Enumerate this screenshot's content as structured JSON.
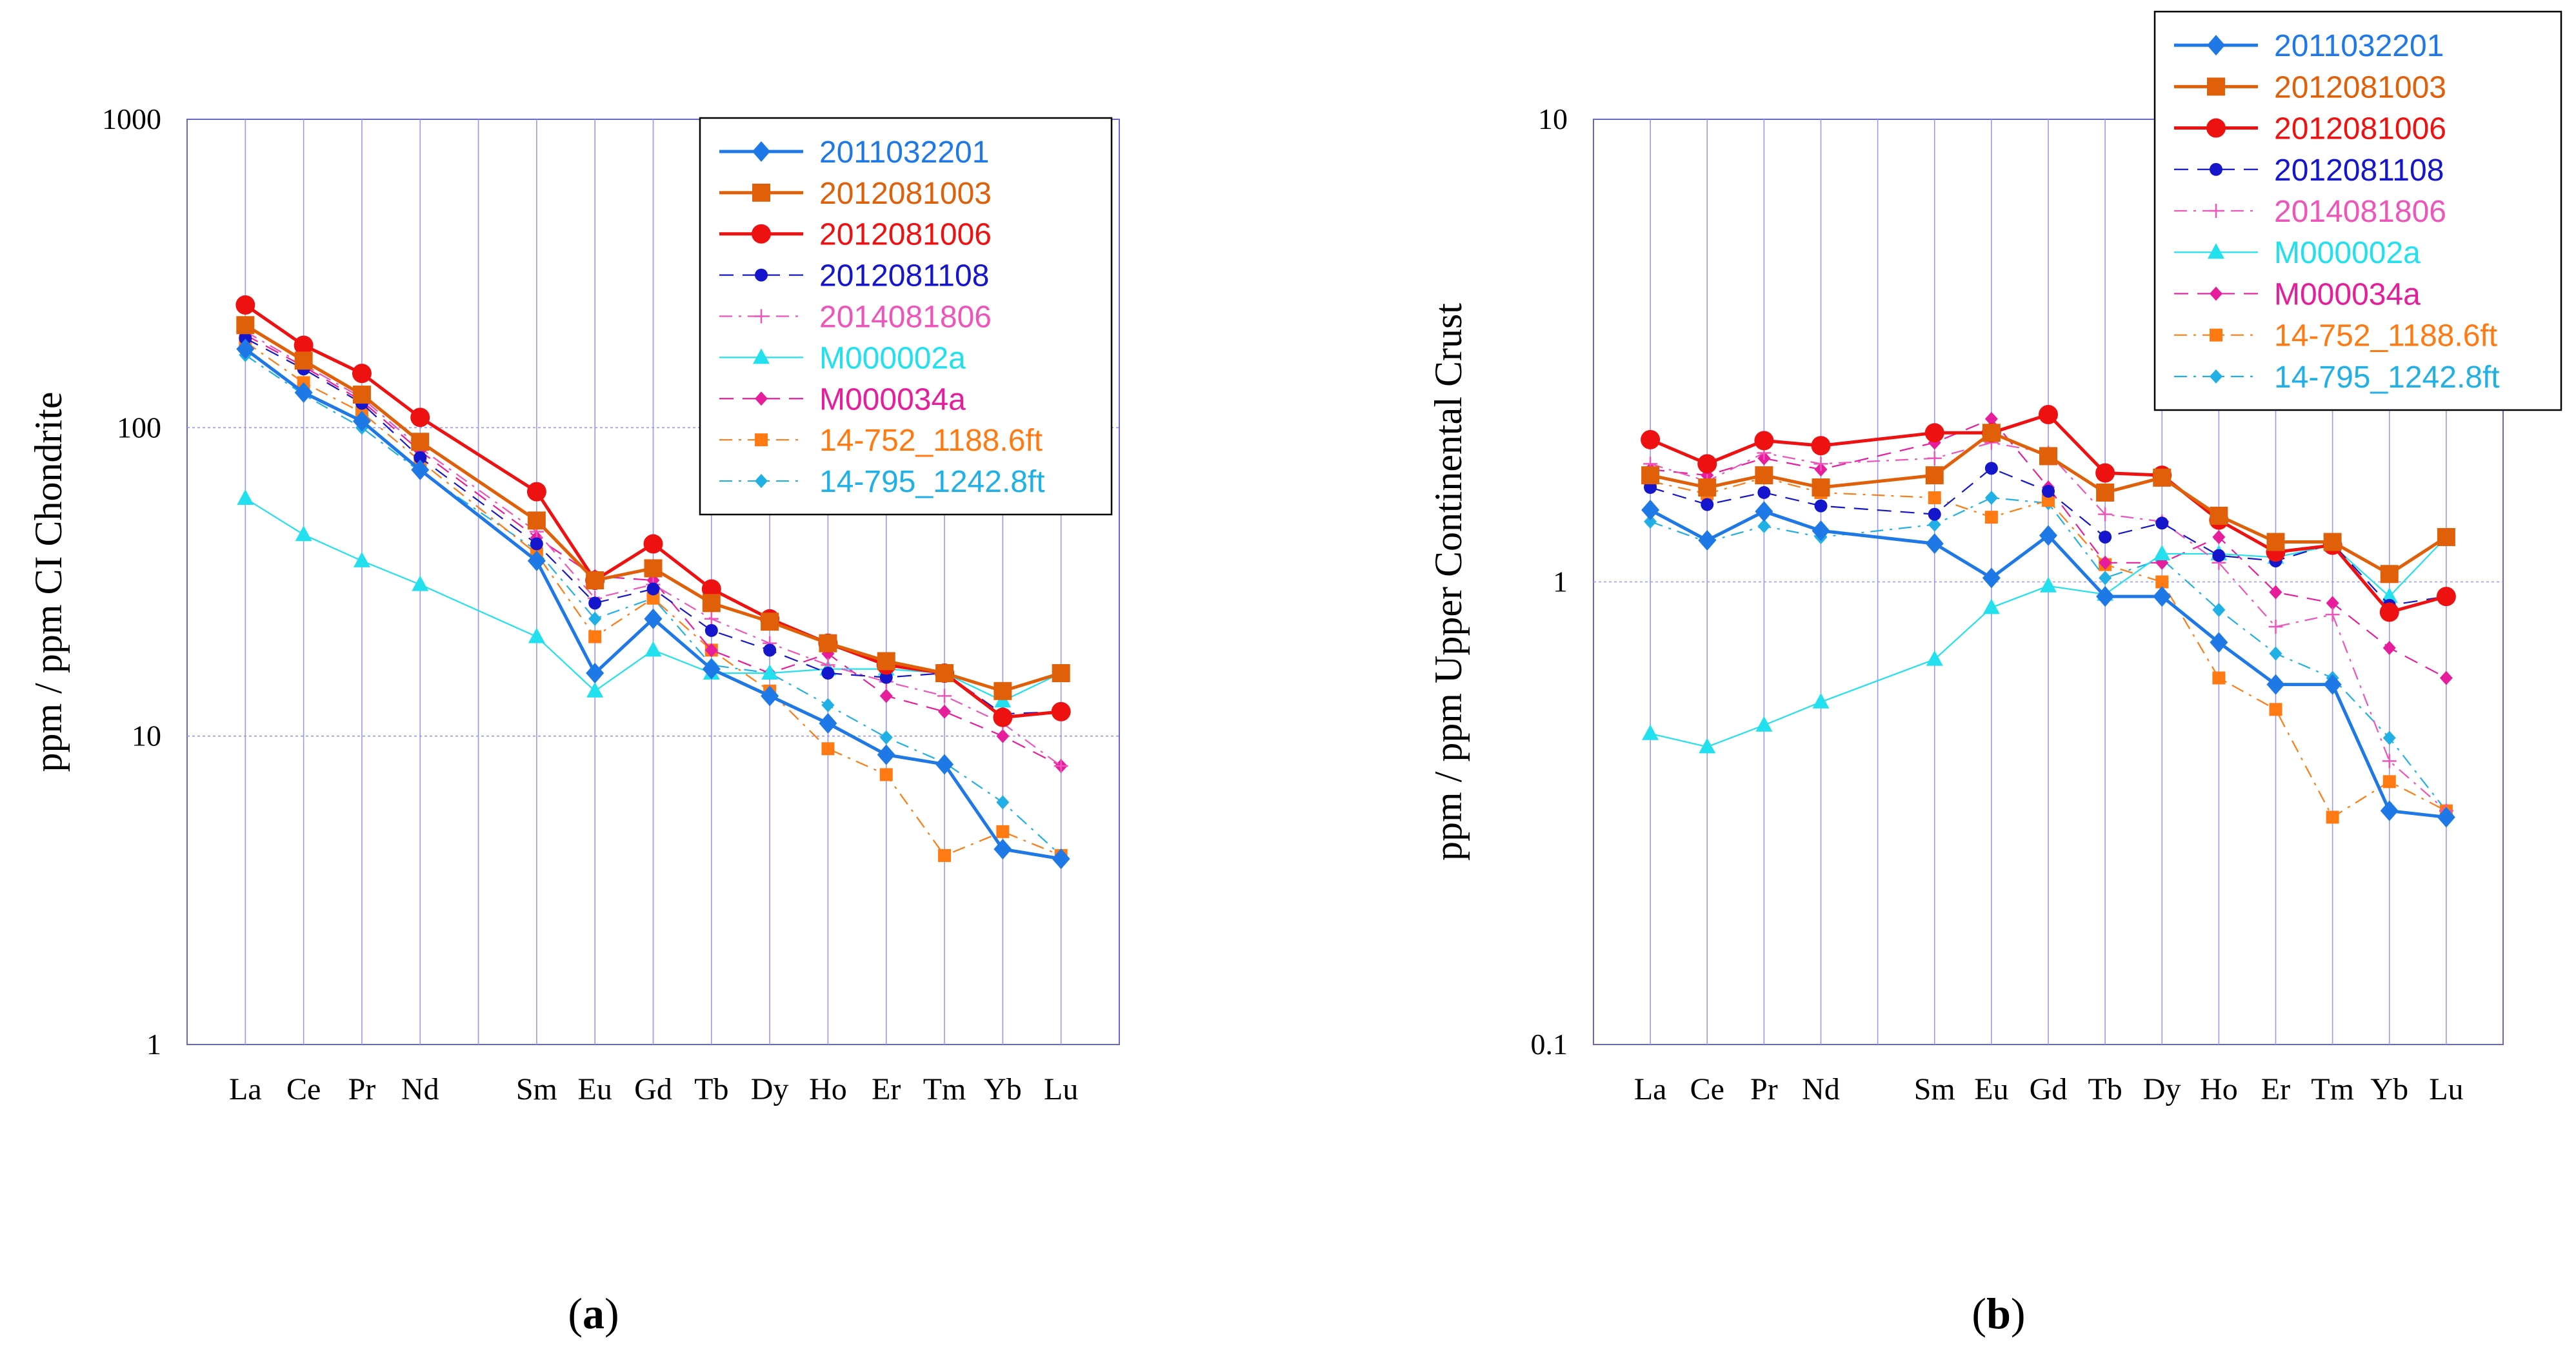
{
  "colors": {
    "grid": "#9999ee",
    "axis": "#6666cc",
    "text": "#000000",
    "legend_border": "#000000"
  },
  "series_styles": [
    {
      "name": "2011032201",
      "color": "#1e78e6",
      "marker": "diamond",
      "dash": "solid",
      "width": "thick"
    },
    {
      "name": "2012081003",
      "color": "#e0600a",
      "marker": "square",
      "dash": "solid",
      "width": "thick"
    },
    {
      "name": "2012081006",
      "color": "#ee1111",
      "marker": "circle",
      "dash": "solid",
      "width": "thick"
    },
    {
      "name": "2012081108",
      "color": "#1515cc",
      "marker": "circle-small",
      "dash": "dashed",
      "width": "thin"
    },
    {
      "name": "2014081806",
      "color": "#ee55bb",
      "marker": "plus",
      "dash": "dashdot",
      "width": "thin"
    },
    {
      "name": "M000002a",
      "color": "#22e0ee",
      "marker": "triangle",
      "dash": "solid",
      "width": "thin"
    },
    {
      "name": "M000034a",
      "color": "#e61e9c",
      "marker": "diamond-small",
      "dash": "dashed",
      "width": "thin"
    },
    {
      "name": "14-752_1188.6ft",
      "color": "#ff7a12",
      "marker": "square-small",
      "dash": "dashdot",
      "width": "thin"
    },
    {
      "name": "14-795_1242.8ft",
      "color": "#20b0e6",
      "marker": "diamond-small",
      "dash": "dashdot",
      "width": "thin"
    }
  ],
  "chart_data": [
    {
      "type": "line",
      "panel_label": "(a)",
      "panel_letter": "a",
      "title": "",
      "xlabel": "",
      "ylabel": "ppm / ppm CI Chondrite",
      "yscale": "log",
      "ylim": [
        1,
        1000
      ],
      "ytick_labels": [
        "1",
        "10",
        "100",
        "1000"
      ],
      "grid": true,
      "legend_position": "top-right",
      "categories": [
        "La",
        "Ce",
        "Pr",
        "Nd",
        "Sm",
        "Eu",
        "Gd",
        "Tb",
        "Dy",
        "Ho",
        "Er",
        "Tm",
        "Yb",
        "Lu"
      ],
      "category_slots": [
        1,
        2,
        3,
        4,
        6,
        7,
        8,
        9,
        10,
        11,
        12,
        13,
        14,
        15
      ],
      "slot_range": [
        0,
        16
      ],
      "series": [
        {
          "name": "2011032201",
          "values": [
            180,
            130,
            105,
            73,
            37,
            16,
            24,
            16.5,
            13.5,
            11,
            8.7,
            8.1,
            4.3,
            4.0
          ]
        },
        {
          "name": "2012081003",
          "values": [
            215,
            165,
            128,
            90,
            50,
            32,
            35,
            27,
            23.5,
            20,
            17.5,
            16,
            14,
            16
          ]
        },
        {
          "name": "2012081006",
          "values": [
            250,
            185,
            150,
            108,
            62,
            32,
            42,
            30,
            24,
            20,
            17,
            16,
            11.5,
            12
          ]
        },
        {
          "name": "2012081108",
          "values": [
            195,
            155,
            120,
            80,
            42,
            27,
            30,
            22,
            19,
            16,
            15.5,
            16,
            11.8,
            12
          ]
        },
        {
          "name": "2014081806",
          "values": [
            205,
            160,
            125,
            86,
            46,
            28,
            31,
            24,
            20,
            17,
            15,
            13.5,
            11,
            8
          ]
        },
        {
          "name": "M000002a",
          "values": [
            59,
            45,
            37,
            31,
            21,
            14,
            19,
            16,
            16,
            16.5,
            16.5,
            16,
            13,
            16
          ]
        },
        {
          "name": "M000034a",
          "values": [
            200,
            158,
            122,
            84,
            44,
            33,
            32,
            19,
            16,
            18.5,
            13.5,
            12,
            10,
            8
          ]
        },
        {
          "name": "14-752_1188.6ft",
          "values": [
            190,
            140,
            112,
            78,
            39,
            21,
            28,
            19,
            14,
            9.1,
            7.5,
            4.1,
            4.9,
            4.1
          ]
        },
        {
          "name": "14-795_1242.8ft",
          "values": [
            172,
            128,
            100,
            72,
            40,
            24,
            28,
            17,
            16,
            12.6,
            9.9,
            8.2,
            6.1,
            4.1
          ]
        }
      ]
    },
    {
      "type": "line",
      "panel_label": "(b)",
      "panel_letter": "b",
      "title": "",
      "xlabel": "",
      "ylabel": "ppm / ppm Upper Continental Crust",
      "yscale": "log",
      "ylim": [
        0.1,
        10
      ],
      "ytick_labels": [
        "0.1",
        "1",
        "10"
      ],
      "grid": true,
      "legend_position": "top-right",
      "categories": [
        "La",
        "Ce",
        "Pr",
        "Nd",
        "Sm",
        "Eu",
        "Gd",
        "Tb",
        "Dy",
        "Ho",
        "Er",
        "Tm",
        "Yb",
        "Lu"
      ],
      "category_slots": [
        1,
        2,
        3,
        4,
        6,
        7,
        8,
        9,
        10,
        11,
        12,
        13,
        14,
        15
      ],
      "slot_range": [
        0,
        16
      ],
      "series": [
        {
          "name": "2011032201",
          "values": [
            1.43,
            1.23,
            1.42,
            1.29,
            1.21,
            1.02,
            1.26,
            0.93,
            0.93,
            0.74,
            0.6,
            0.6,
            0.32,
            0.31
          ]
        },
        {
          "name": "2012081003",
          "values": [
            1.7,
            1.6,
            1.7,
            1.6,
            1.7,
            2.1,
            1.87,
            1.56,
            1.68,
            1.39,
            1.22,
            1.22,
            1.04,
            1.25
          ]
        },
        {
          "name": "2012081006",
          "values": [
            2.03,
            1.8,
            2.02,
            1.97,
            2.1,
            2.1,
            2.3,
            1.72,
            1.7,
            1.36,
            1.16,
            1.2,
            0.86,
            0.93
          ]
        },
        {
          "name": "2012081108",
          "values": [
            1.6,
            1.47,
            1.56,
            1.46,
            1.4,
            1.76,
            1.57,
            1.25,
            1.34,
            1.14,
            1.11,
            1.21,
            0.89,
            0.93
          ]
        },
        {
          "name": "2014081806",
          "values": [
            1.8,
            1.65,
            1.9,
            1.8,
            1.85,
            2.0,
            1.9,
            1.4,
            1.35,
            1.1,
            0.8,
            0.85,
            0.41,
            0.32
          ]
        },
        {
          "name": "M000002a",
          "values": [
            0.47,
            0.44,
            0.49,
            0.55,
            0.68,
            0.88,
            0.98,
            0.94,
            1.15,
            1.15,
            1.13,
            1.2,
            0.93,
            1.25
          ]
        },
        {
          "name": "M000034a",
          "values": [
            1.75,
            1.7,
            1.85,
            1.75,
            2.0,
            2.25,
            1.6,
            1.1,
            1.1,
            1.25,
            0.95,
            0.9,
            0.72,
            0.62
          ]
        },
        {
          "name": "14-752_1188.6ft",
          "values": [
            1.65,
            1.55,
            1.68,
            1.56,
            1.52,
            1.38,
            1.5,
            1.09,
            1.0,
            0.62,
            0.53,
            0.31,
            0.37,
            0.32
          ]
        },
        {
          "name": "14-795_1242.8ft",
          "values": [
            1.35,
            1.22,
            1.32,
            1.25,
            1.33,
            1.52,
            1.48,
            1.02,
            1.12,
            0.87,
            0.7,
            0.62,
            0.46,
            0.32
          ]
        }
      ]
    }
  ]
}
